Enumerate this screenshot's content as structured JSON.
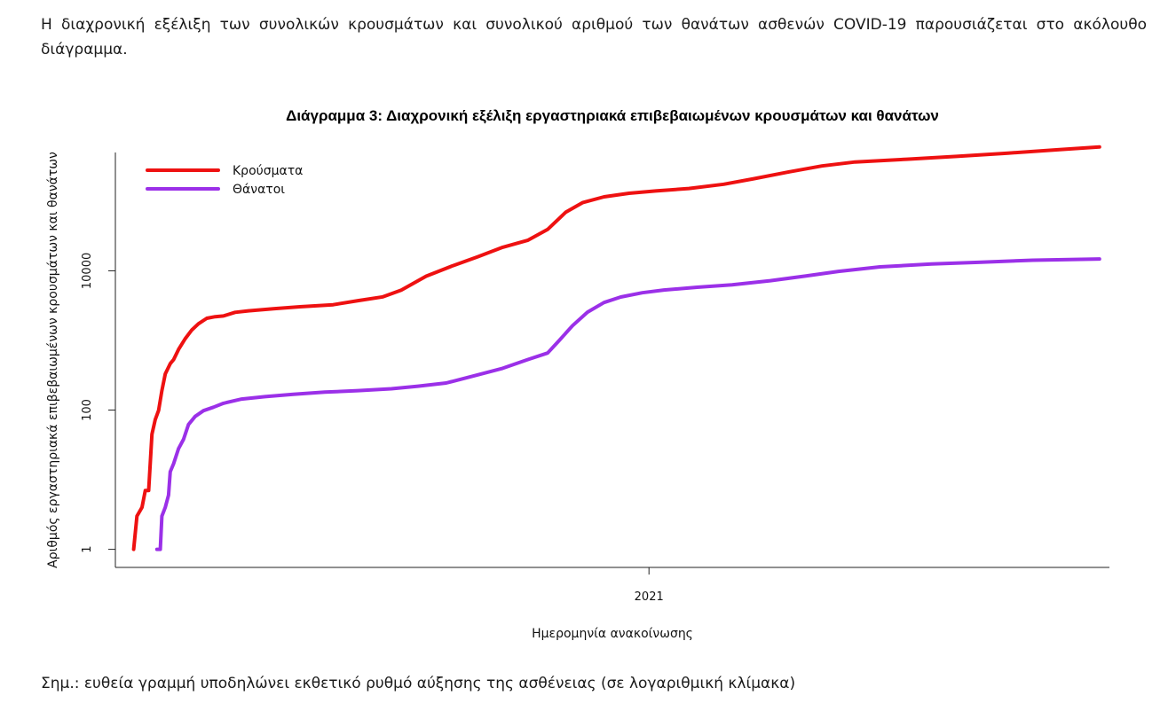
{
  "intro_text": "Η διαχρονική εξέλιξη των συνολικών κρουσμάτων και συνολικού αριθμού των θανάτων ασθενών COVID-19 παρουσιάζεται στο ακόλουθο διάγραμμα.",
  "note_text": "Σημ.: ευθεία γραμμή υποδηλώνει εκθετικό ρυθμό αύξησης της ασθένειας (σε λογαριθμική κλίμακα)",
  "chart_data": {
    "type": "line",
    "title": "Διάγραμμα 3: Διαχρονική εξέλιξη εργαστηριακά επιβεβαιωμένων κρουσμάτων και θανάτων",
    "xlabel": "Ημερομηνία ανακοίνωσης",
    "ylabel": "Αριθμός εργαστηριακά επιβεβαιωμένων κρουσμάτων και θανάτων",
    "x_scale": "time",
    "x_ticks": [
      {
        "date": "2021-01-01",
        "label": "2021"
      }
    ],
    "xlim": [
      "2020-02-15",
      "2021-10-05"
    ],
    "y_scale": "log10",
    "y_ticks": [
      {
        "value": 1,
        "label": "1"
      },
      {
        "value": 100,
        "label": "100"
      },
      {
        "value": 10000,
        "label": "10000"
      }
    ],
    "ylim": [
      0.55,
      500000
    ],
    "grid": false,
    "legend_position": "top-left",
    "series": [
      {
        "name": "Κρούσματα",
        "color": "#ee1111",
        "points": [
          [
            "2020-02-26",
            1
          ],
          [
            "2020-02-28",
            3
          ],
          [
            "2020-03-02",
            4
          ],
          [
            "2020-03-04",
            7
          ],
          [
            "2020-03-06",
            7
          ],
          [
            "2020-03-08",
            45
          ],
          [
            "2020-03-10",
            73
          ],
          [
            "2020-03-12",
            99
          ],
          [
            "2020-03-14",
            190
          ],
          [
            "2020-03-16",
            330
          ],
          [
            "2020-03-19",
            464
          ],
          [
            "2020-03-21",
            530
          ],
          [
            "2020-03-24",
            743
          ],
          [
            "2020-03-28",
            1061
          ],
          [
            "2020-04-01",
            1415
          ],
          [
            "2020-04-05",
            1735
          ],
          [
            "2020-04-10",
            2081
          ],
          [
            "2020-04-15",
            2192
          ],
          [
            "2020-04-20",
            2245
          ],
          [
            "2020-04-27",
            2534
          ],
          [
            "2020-05-05",
            2663
          ],
          [
            "2020-05-20",
            2853
          ],
          [
            "2020-06-05",
            3049
          ],
          [
            "2020-06-25",
            3256
          ],
          [
            "2020-07-10",
            3732
          ],
          [
            "2020-07-25",
            4227
          ],
          [
            "2020-08-05",
            5270
          ],
          [
            "2020-08-20",
            8381
          ],
          [
            "2020-09-05",
            11832
          ],
          [
            "2020-09-20",
            15928
          ],
          [
            "2020-10-05",
            21772
          ],
          [
            "2020-10-20",
            27334
          ],
          [
            "2020-11-01",
            39251
          ],
          [
            "2020-11-12",
            69675
          ],
          [
            "2020-11-22",
            95137
          ],
          [
            "2020-12-05",
            115471
          ],
          [
            "2020-12-20",
            129980
          ],
          [
            "2021-01-05",
            140099
          ],
          [
            "2021-01-25",
            152000
          ],
          [
            "2021-02-15",
            175000
          ],
          [
            "2021-03-05",
            210000
          ],
          [
            "2021-03-25",
            260000
          ],
          [
            "2021-04-15",
            320000
          ],
          [
            "2021-05-05",
            365000
          ],
          [
            "2021-06-05",
            400000
          ],
          [
            "2021-07-05",
            440000
          ],
          [
            "2021-08-05",
            490000
          ],
          [
            "2021-09-05",
            550000
          ],
          [
            "2021-09-29",
            600000
          ]
        ]
      },
      {
        "name": "Θάνατοι",
        "color": "#9b30e8",
        "points": [
          [
            "2020-03-11",
            1
          ],
          [
            "2020-03-13",
            1
          ],
          [
            "2020-03-14",
            3
          ],
          [
            "2020-03-16",
            4
          ],
          [
            "2020-03-18",
            6
          ],
          [
            "2020-03-19",
            13
          ],
          [
            "2020-03-21",
            17
          ],
          [
            "2020-03-24",
            28
          ],
          [
            "2020-03-27",
            38
          ],
          [
            "2020-03-30",
            62
          ],
          [
            "2020-04-03",
            81
          ],
          [
            "2020-04-08",
            98
          ],
          [
            "2020-04-14",
            110
          ],
          [
            "2020-04-20",
            125
          ],
          [
            "2020-05-01",
            144
          ],
          [
            "2020-05-15",
            156
          ],
          [
            "2020-06-01",
            168
          ],
          [
            "2020-06-20",
            181
          ],
          [
            "2020-07-10",
            190
          ],
          [
            "2020-07-30",
            202
          ],
          [
            "2020-08-15",
            220
          ],
          [
            "2020-09-01",
            245
          ],
          [
            "2020-09-20",
            320
          ],
          [
            "2020-10-05",
            398
          ],
          [
            "2020-10-20",
            530
          ],
          [
            "2020-11-01",
            660
          ],
          [
            "2020-11-08",
            1000
          ],
          [
            "2020-11-16",
            1630
          ],
          [
            "2020-11-25",
            2550
          ],
          [
            "2020-12-05",
            3500
          ],
          [
            "2020-12-15",
            4200
          ],
          [
            "2020-12-28",
            4840
          ],
          [
            "2021-01-10",
            5300
          ],
          [
            "2021-01-30",
            5800
          ],
          [
            "2021-02-20",
            6300
          ],
          [
            "2021-03-15",
            7200
          ],
          [
            "2021-04-05",
            8400
          ],
          [
            "2021-04-25",
            9800
          ],
          [
            "2021-05-20",
            11400
          ],
          [
            "2021-06-20",
            12500
          ],
          [
            "2021-07-20",
            13300
          ],
          [
            "2021-08-20",
            14200
          ],
          [
            "2021-09-29",
            14800
          ]
        ]
      }
    ]
  }
}
